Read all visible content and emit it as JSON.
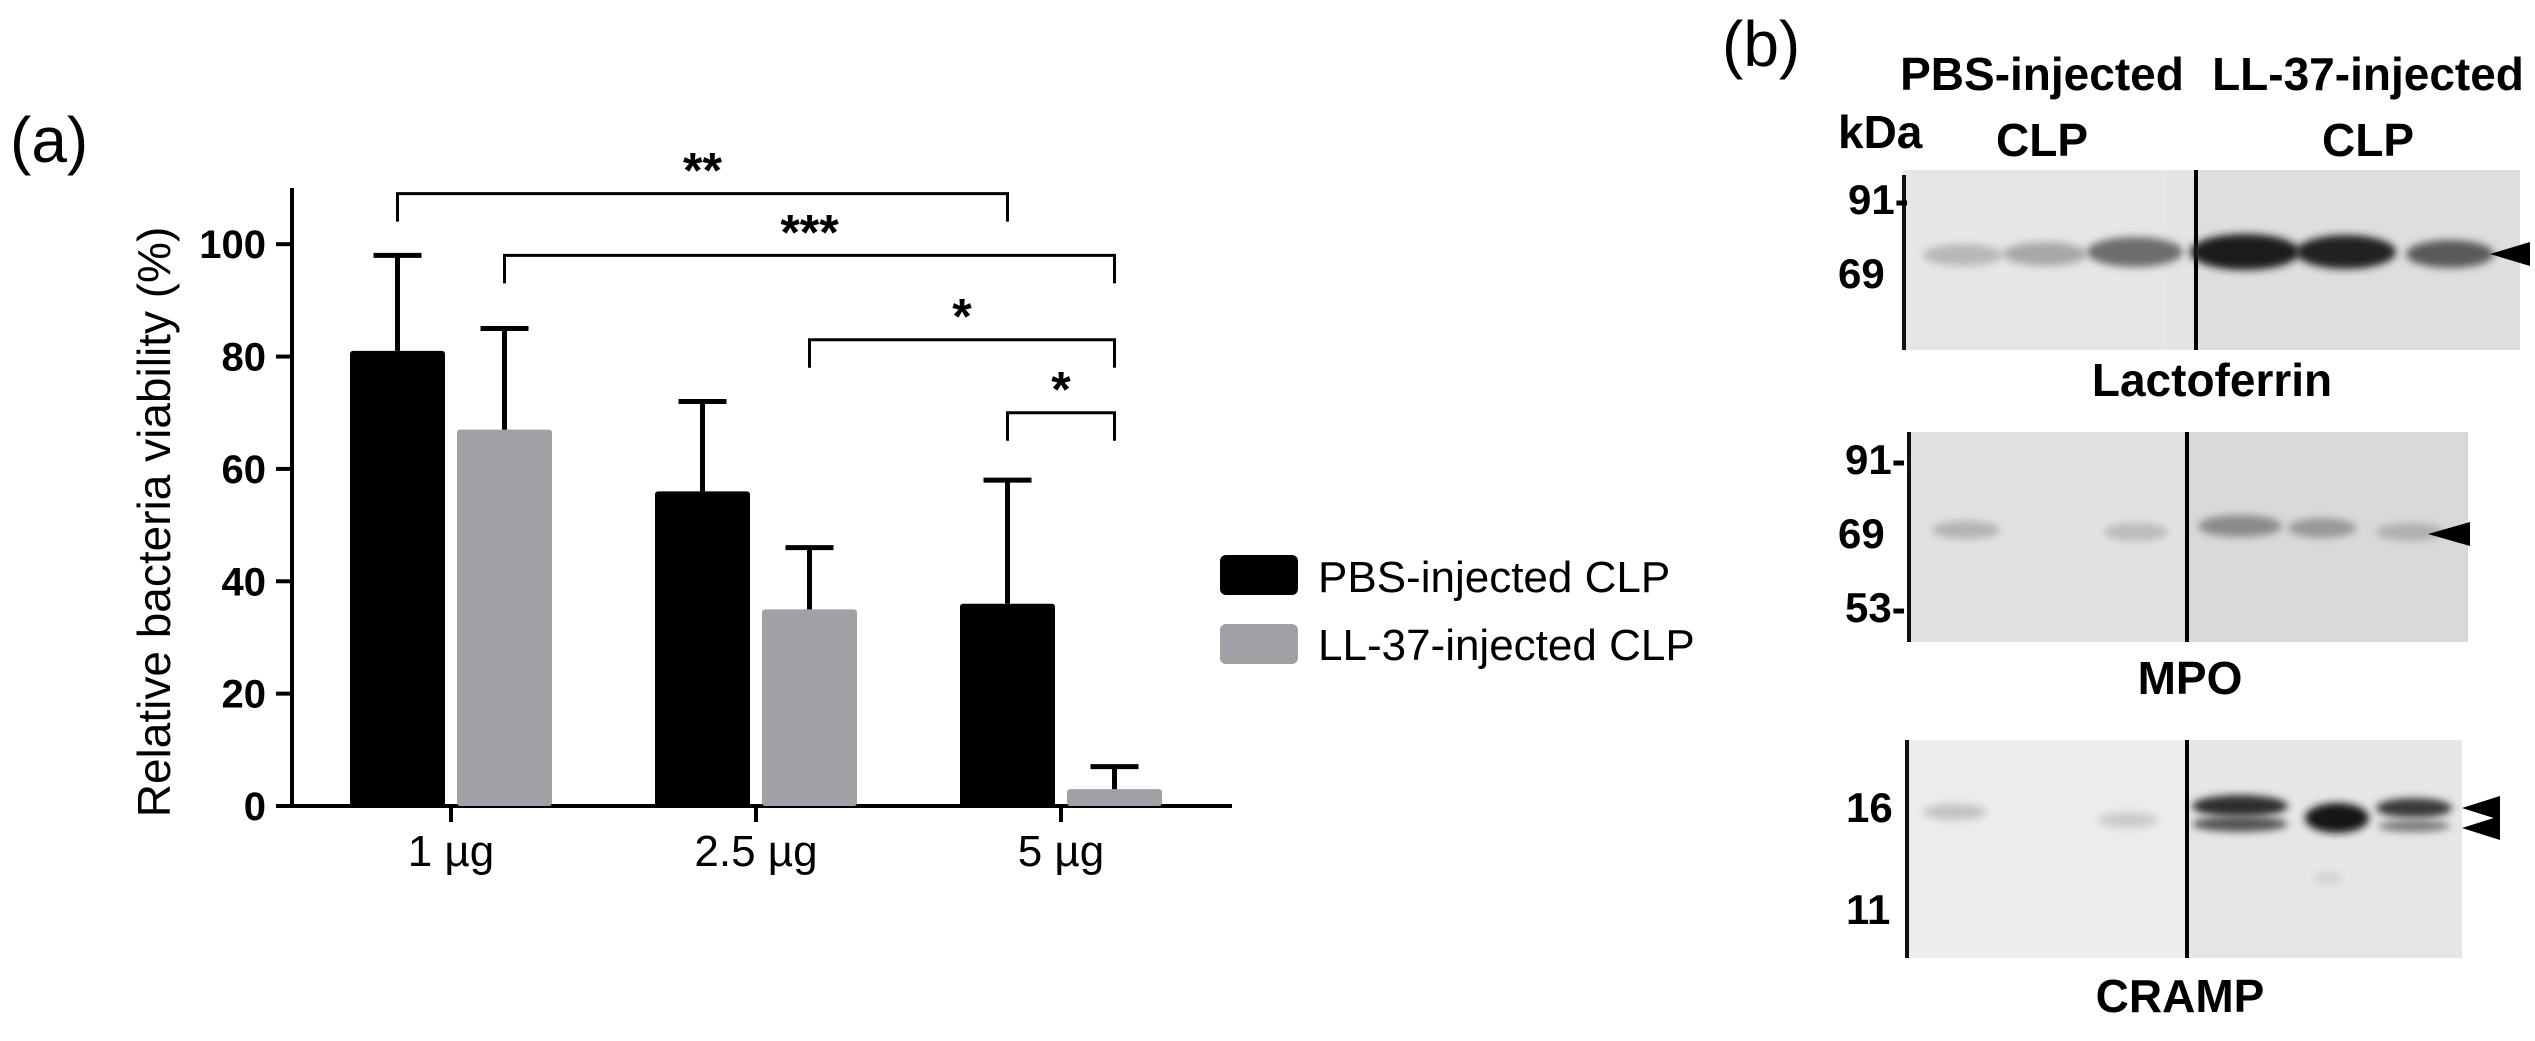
{
  "panels": {
    "a": "(a)",
    "b": "(b)"
  },
  "chart_data": {
    "type": "bar",
    "ylabel": "Relative bacteria viability (%)",
    "xlabel": "",
    "categories": [
      "1 µg",
      "2.5 µg",
      "5 µg"
    ],
    "ylim": [
      0,
      110
    ],
    "yticks": [
      0,
      20,
      40,
      60,
      80,
      100
    ],
    "grid": false,
    "legend_position": "right",
    "series": [
      {
        "name": "PBS-injected CLP",
        "color": "#000000",
        "values": [
          81,
          56,
          36
        ],
        "errors": [
          17,
          16,
          22
        ]
      },
      {
        "name": "LL-37-injected CLP",
        "color": "#a1a1a5",
        "values": [
          67,
          35,
          3
        ],
        "errors": [
          18,
          11,
          4
        ]
      }
    ],
    "significance": [
      {
        "label": "**",
        "from": [
          0,
          0
        ],
        "to": [
          2,
          0
        ],
        "y": 109
      },
      {
        "label": "***",
        "from": [
          0,
          1
        ],
        "to": [
          2,
          1
        ],
        "y": 98
      },
      {
        "label": "*",
        "from": [
          1,
          1
        ],
        "to": [
          2,
          1
        ],
        "y": 83
      },
      {
        "label": "*",
        "from": [
          2,
          0
        ],
        "to": [
          2,
          1
        ],
        "y": 70
      }
    ]
  },
  "blot": {
    "kda_label": "kDa",
    "group_pbs": [
      "PBS-injected",
      "CLP"
    ],
    "group_ll37": [
      "LL-37-injected",
      "CLP"
    ],
    "lactoferrin": {
      "name": "Lactoferrin",
      "markers": [
        "91-",
        "69"
      ]
    },
    "mpo": {
      "name": "MPO",
      "markers": [
        "91-",
        "69",
        "53-"
      ]
    },
    "cramp": {
      "name": "CRAMP",
      "markers": [
        "16",
        "11"
      ]
    }
  }
}
